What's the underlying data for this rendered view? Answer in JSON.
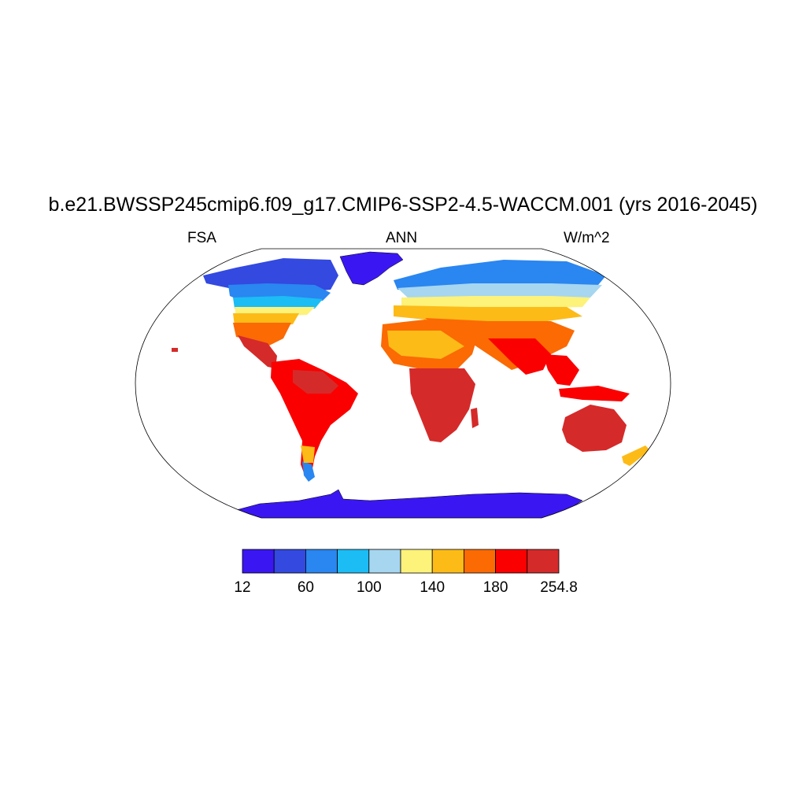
{
  "header": {
    "title": "b.e21.BWSSP245cmip6.f09_g17.CMIP6-SSP2-4.5-WACCM.001 (yrs 2016-2045)",
    "left": "FSA",
    "center": "ANN",
    "right": "W/m^2"
  },
  "map": {
    "projection": "Robinson",
    "field": "FSA",
    "season": "ANN",
    "units": "W/m^2",
    "ocean_masked": true
  },
  "colorbar": {
    "colors": [
      "#3a17f2",
      "#3349e0",
      "#2a86f0",
      "#1cbcf5",
      "#a6d6f0",
      "#fdf27a",
      "#fdbb17",
      "#fb6a03",
      "#fb0000",
      "#d52a2a"
    ],
    "tick_labels": [
      "12",
      "60",
      "100",
      "140",
      "180",
      "254.8"
    ]
  }
}
